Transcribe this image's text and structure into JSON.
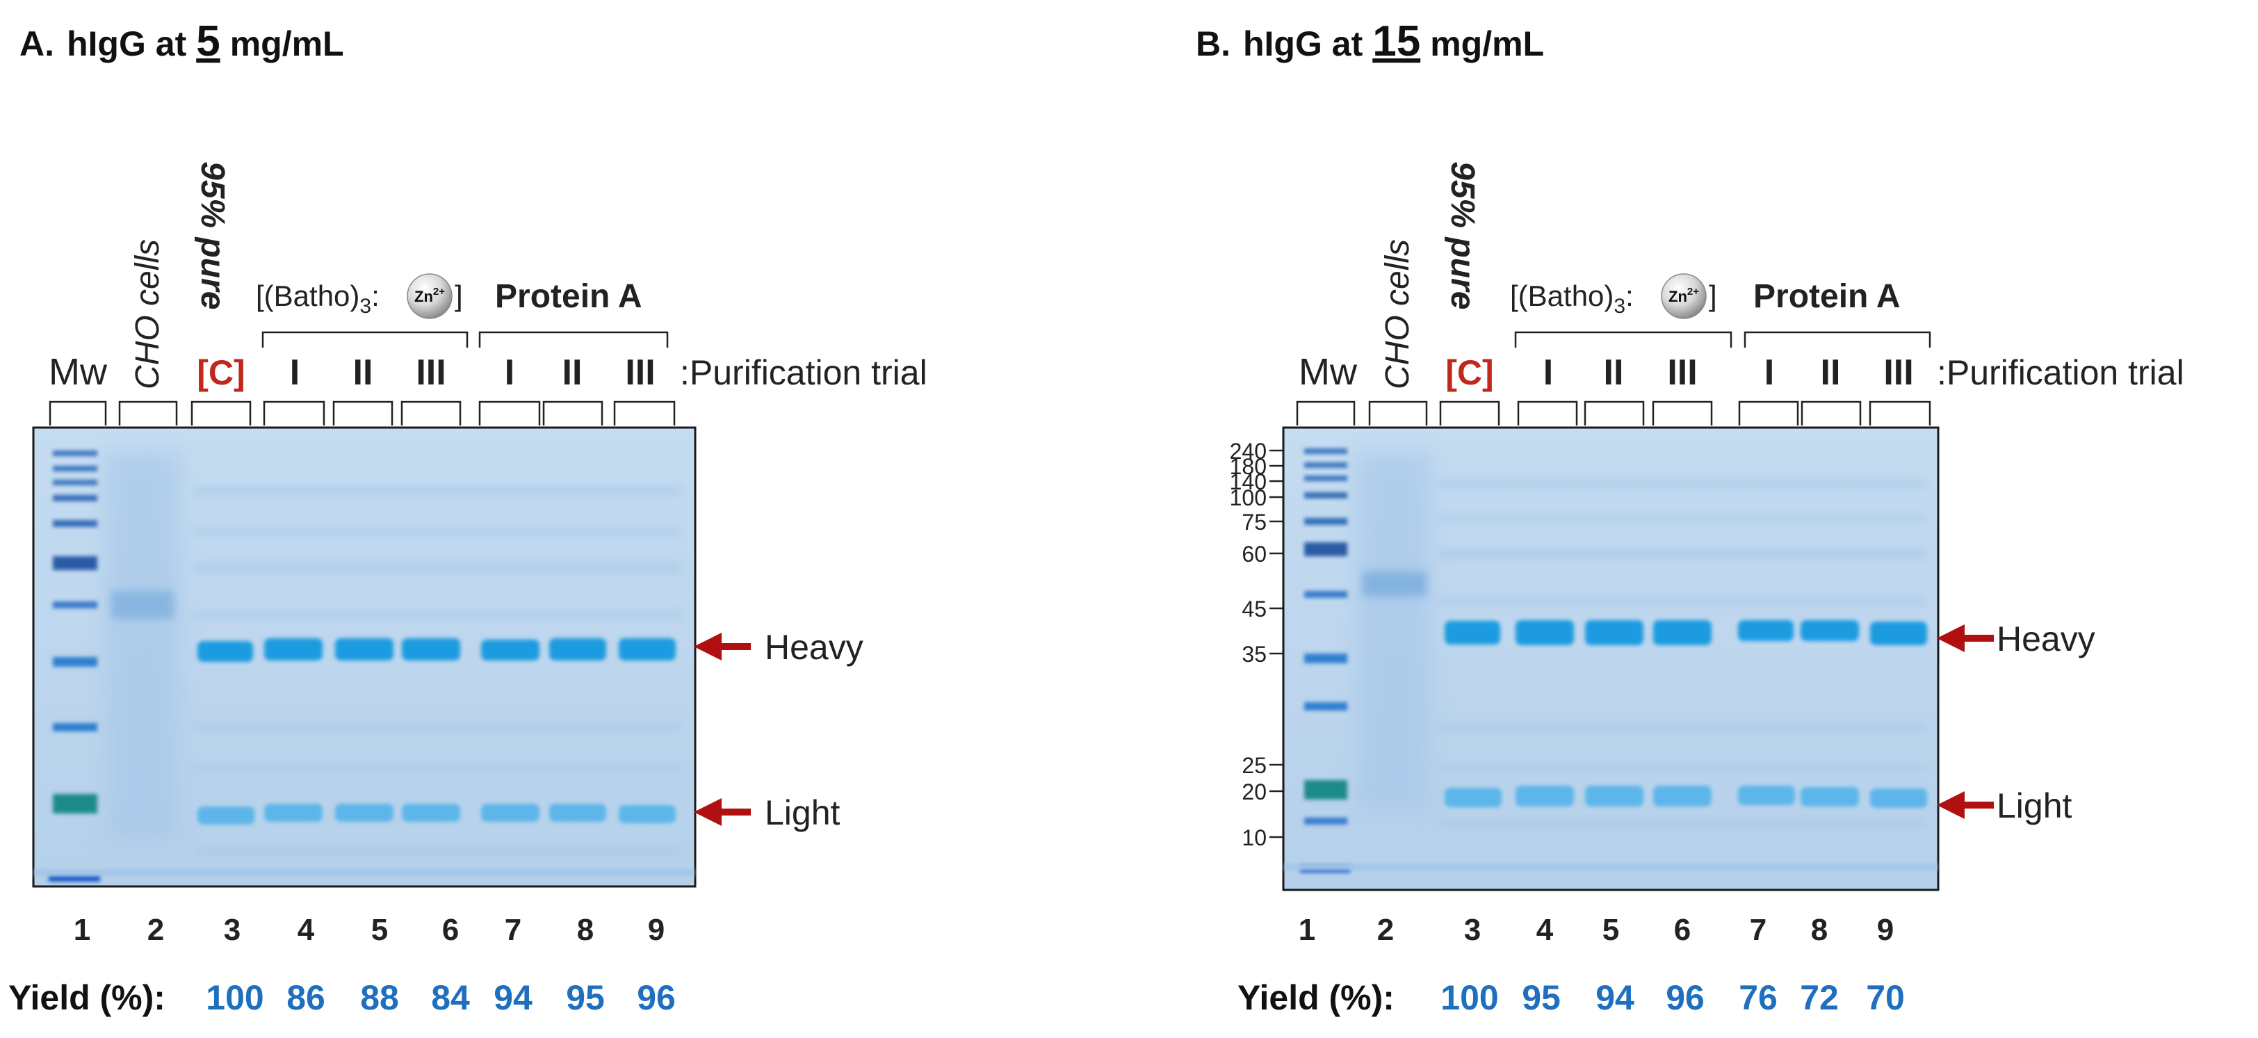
{
  "panels": [
    {
      "id": "A",
      "panel_prefix": "A.",
      "title_pre": "hIgG at",
      "title_num": "5",
      "title_unit": "mg/mL",
      "mw_markers": [],
      "yield_values": [
        "100",
        "86",
        "88",
        "84",
        "94",
        "95",
        "96"
      ]
    },
    {
      "id": "B",
      "panel_prefix": "B.",
      "title_pre": "hIgG at",
      "title_num": "15",
      "title_unit": "mg/mL",
      "mw_markers": [
        "240",
        "180",
        "140",
        "100",
        "75",
        "60",
        "45",
        "35",
        "25",
        "20",
        "10"
      ],
      "yield_values": [
        "100",
        "95",
        "94",
        "96",
        "76",
        "72",
        "70"
      ]
    }
  ],
  "lane_headers": {
    "mw": "Mw",
    "cho": "CHO cells",
    "pure": "95% pure",
    "control": "[C]",
    "trial_numerals": [
      "I",
      "II",
      "III",
      "I",
      "II",
      "III"
    ],
    "trial_suffix": ":Purification trial",
    "batho_prefix": "[(Batho)",
    "batho_sub": "3",
    "batho_colon": ":",
    "zn_label": "Zn",
    "zn_charge": "2+",
    "batho_close": "]",
    "protein_a": "Protein A"
  },
  "lane_numbers": [
    "1",
    "2",
    "3",
    "4",
    "5",
    "6",
    "7",
    "8",
    "9"
  ],
  "band_labels": {
    "heavy": "Heavy",
    "light": "Light"
  },
  "yield_label": "Yield (%):",
  "colors": {
    "gel_background": "#b9d3ec",
    "band_blue": "#1e9be0",
    "yield_blue": "#1f6fbf",
    "arrow_red": "#b01010",
    "control_red": "#c0281e"
  }
}
